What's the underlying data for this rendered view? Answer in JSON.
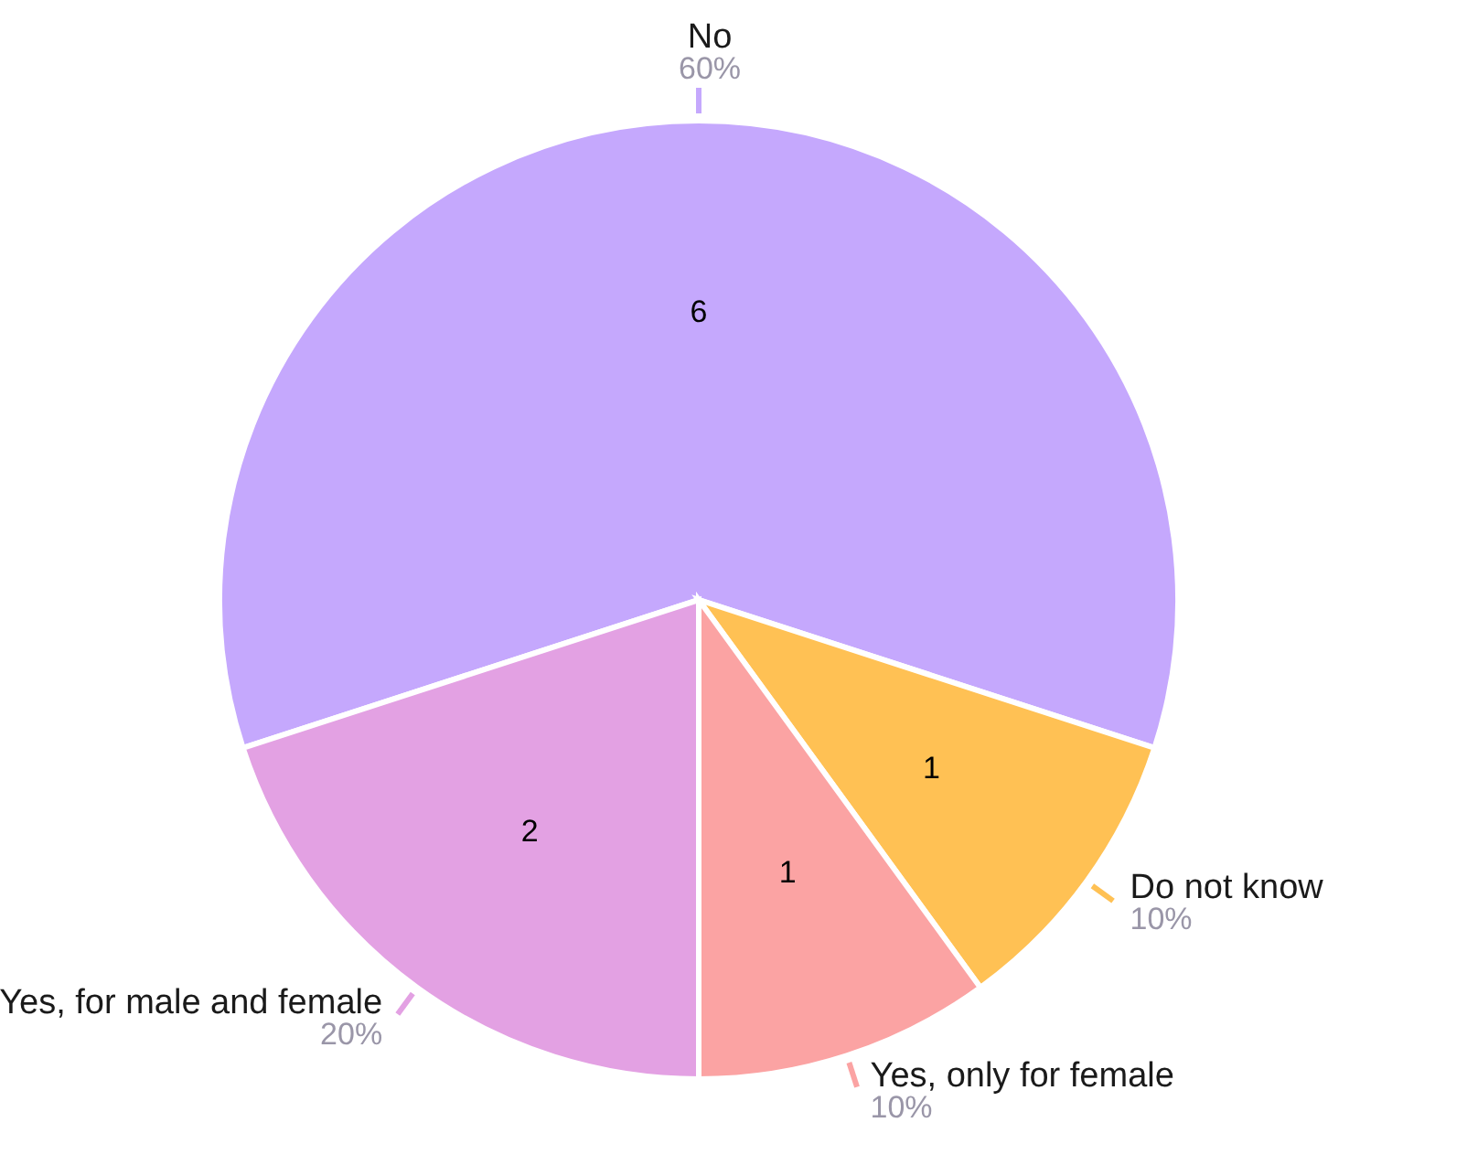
{
  "chart_data": {
    "type": "pie",
    "categories": [
      "No",
      "Do not know",
      "Yes, only for female",
      "Yes, for male and female"
    ],
    "values": [
      6,
      1,
      1,
      2
    ],
    "colors": [
      "#c5a8fd",
      "#ffc154",
      "#fba3a3",
      "#e3a1e3"
    ],
    "annotations": [
      "60%",
      "10%",
      "10%",
      "20%"
    ],
    "data_labels": true,
    "legend": false
  }
}
